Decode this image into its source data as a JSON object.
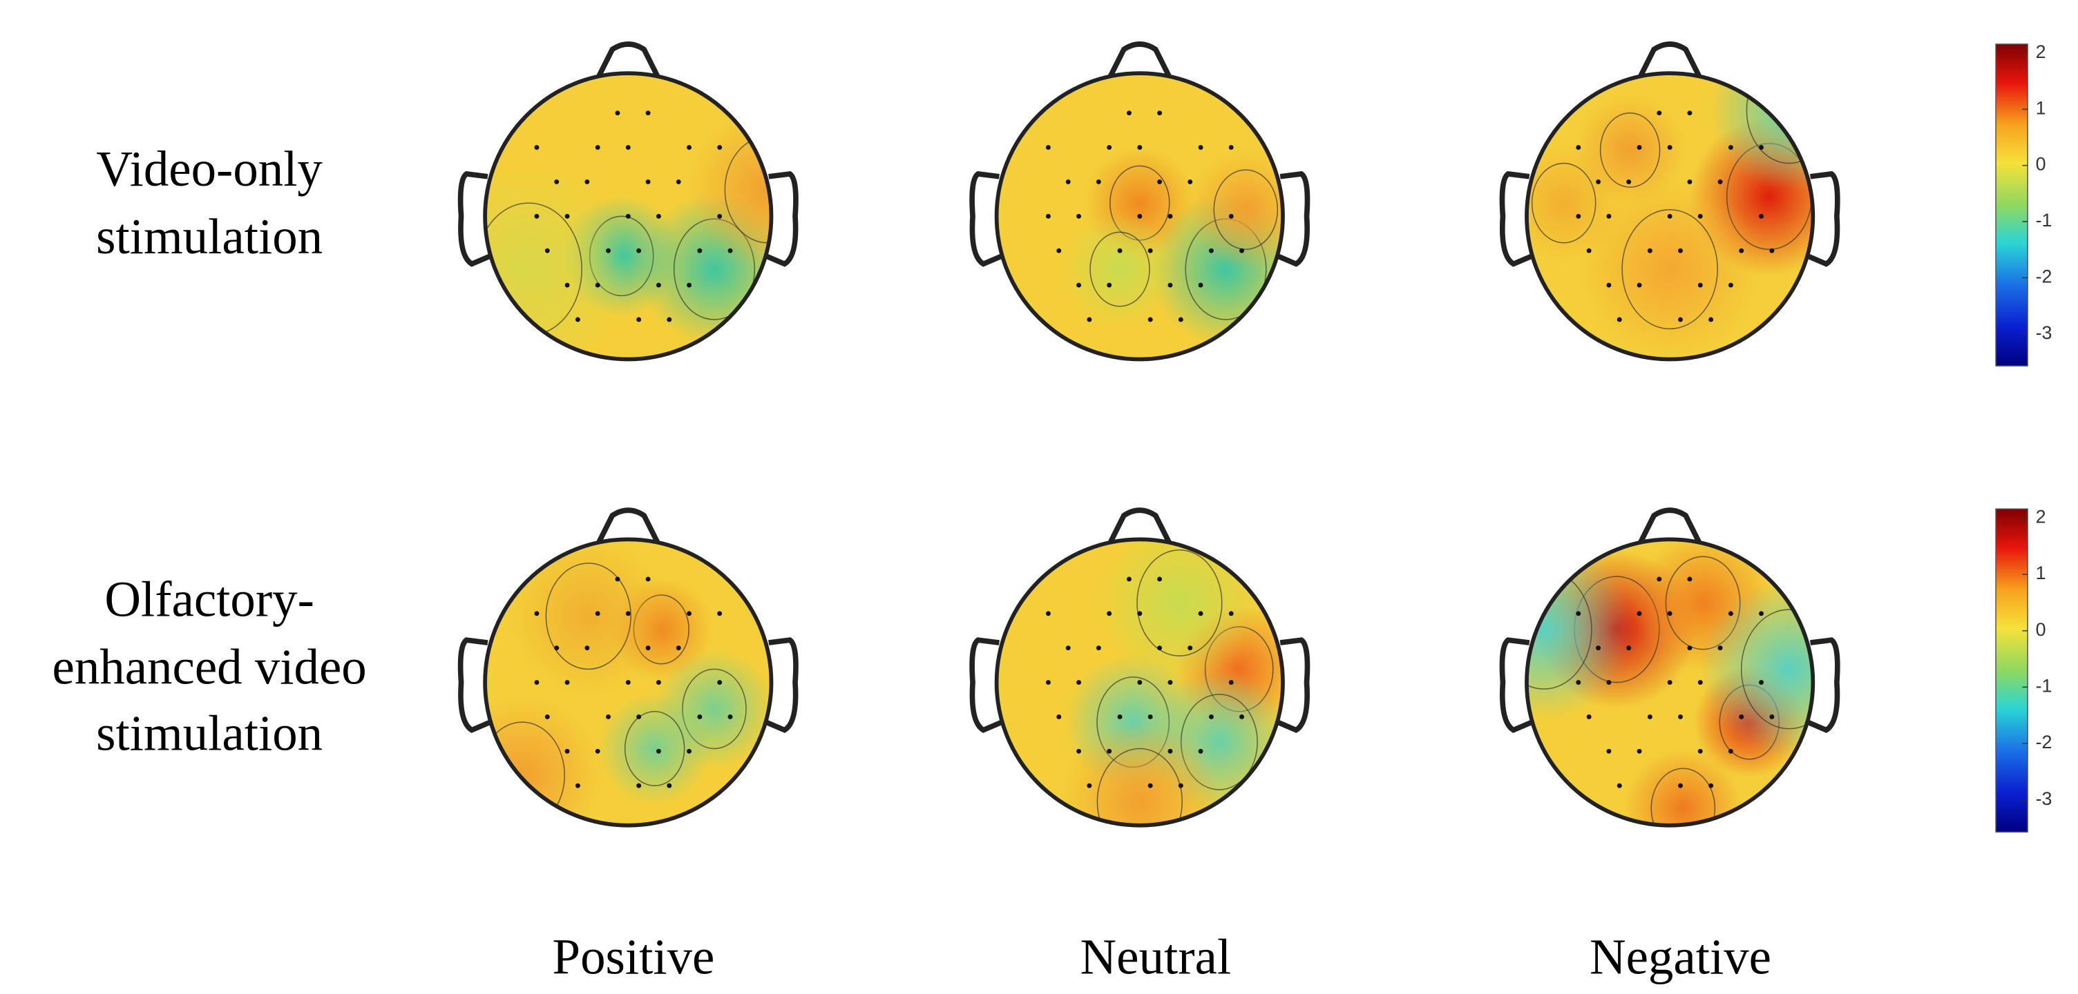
{
  "rows": [
    {
      "label_lines": [
        "Video-only",
        "stimulation"
      ]
    },
    {
      "label_lines": [
        "Olfactory-",
        "enhanced video",
        "stimulation"
      ]
    }
  ],
  "columns": [
    "Positive",
    "Neutral",
    "Negative"
  ],
  "colorbars": [
    {
      "limits": [
        -3.57,
        2.16
      ],
      "ticks": [
        2,
        1,
        0,
        -1,
        -2,
        -3
      ]
    },
    {
      "limits": [
        -3.57,
        2.16
      ],
      "ticks": [
        2,
        1,
        0,
        -1,
        -2,
        -3
      ]
    }
  ]
}
